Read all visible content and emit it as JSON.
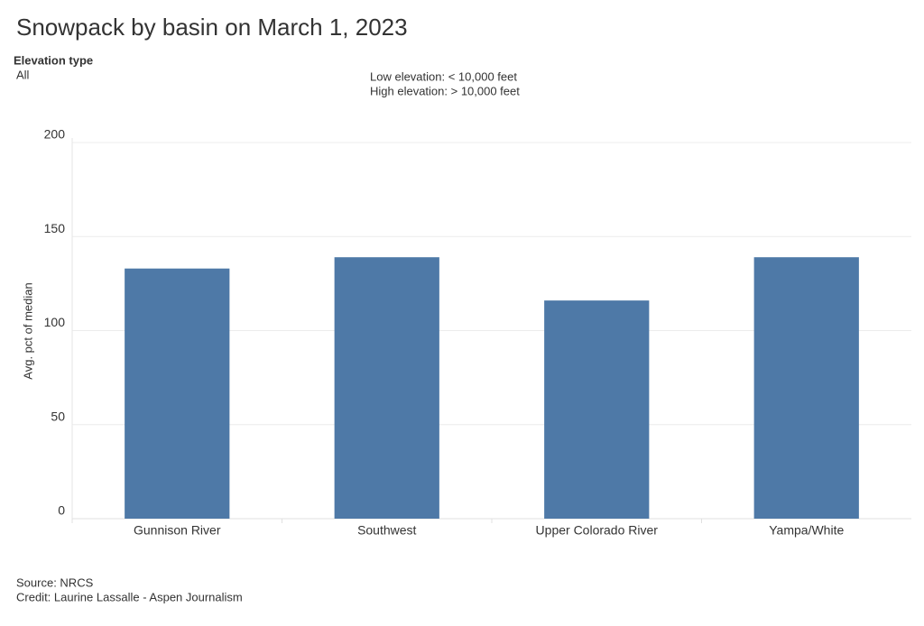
{
  "chart_data": {
    "type": "bar",
    "title": "Snowpack by basin on March 1, 2023",
    "filter": {
      "label": "Elevation type",
      "value": "All"
    },
    "notes": [
      "Low elevation: < 10,000 feet",
      "High elevation: > 10,000 feet"
    ],
    "y_label": "Avg. pct of median",
    "categories": [
      "Gunnison River",
      "Southwest",
      "Upper Colorado River",
      "Yampa/White"
    ],
    "values": [
      133,
      139,
      116,
      139
    ],
    "color": "#4e79a7",
    "ylim": [
      0,
      200
    ],
    "yticks": [
      0,
      50,
      100,
      150,
      200
    ],
    "grid": true,
    "source": "Source: NRCS",
    "credit": "Credit: Laurine Lassalle - Aspen Journalism"
  }
}
